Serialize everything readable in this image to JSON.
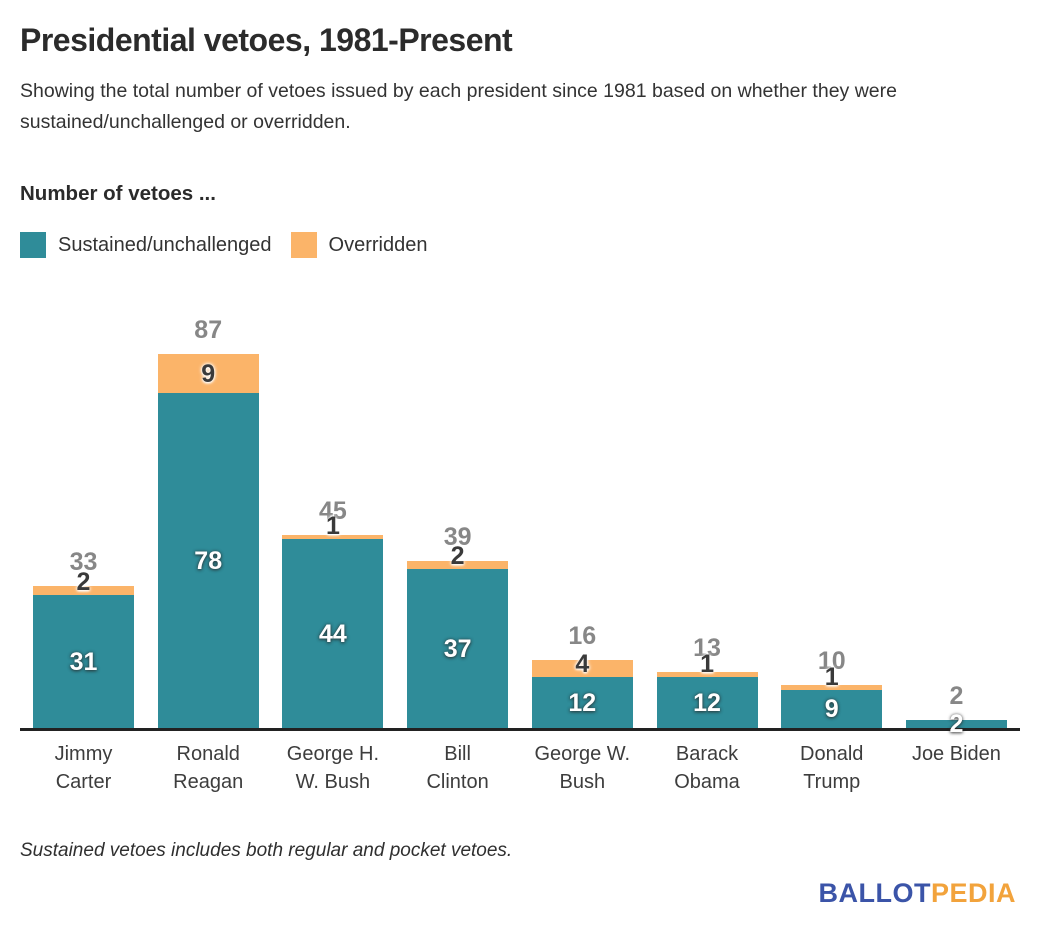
{
  "title": "Presidential vetoes, 1981-Present",
  "subtitle": "Showing the total number of vetoes issued by each president since 1981 based on whether they were sustained/unchallenged or overridden.",
  "legend": {
    "heading": "Number of vetoes ...",
    "items": [
      {
        "label": "Sustained/unchallenged",
        "color": "#2F8C99"
      },
      {
        "label": "Overridden",
        "color": "#FBB469"
      }
    ]
  },
  "chart_data": {
    "type": "bar",
    "stacked": true,
    "title": "Presidential vetoes, 1981-Present",
    "xlabel": "",
    "ylabel": "Number of vetoes",
    "ylim": [
      0,
      87
    ],
    "grid": false,
    "legend_position": "top-left",
    "categories": [
      "Jimmy Carter",
      "Ronald Reagan",
      "George H. W. Bush",
      "Bill Clinton",
      "George W. Bush",
      "Barack Obama",
      "Donald Trump",
      "Joe Biden"
    ],
    "category_lines": [
      [
        "Jimmy",
        "Carter"
      ],
      [
        "Ronald",
        "Reagan"
      ],
      [
        "George H.",
        "W. Bush"
      ],
      [
        "Bill",
        "Clinton"
      ],
      [
        "George W.",
        "Bush"
      ],
      [
        "Barack",
        "Obama"
      ],
      [
        "Donald",
        "Trump"
      ],
      [
        "Joe Biden"
      ]
    ],
    "series": [
      {
        "name": "Sustained/unchallenged",
        "color": "#2F8C99",
        "values": [
          31,
          78,
          44,
          37,
          12,
          12,
          9,
          2
        ]
      },
      {
        "name": "Overridden",
        "color": "#FBB469",
        "values": [
          2,
          9,
          1,
          2,
          4,
          1,
          1,
          0
        ]
      }
    ],
    "totals": [
      33,
      87,
      45,
      39,
      16,
      13,
      10,
      2
    ]
  },
  "note": "Sustained vetoes includes both regular and pocket vetoes.",
  "logo": {
    "part1": "BALLOT",
    "part2": "PEDIA",
    "color1": "#3B54A8",
    "color2": "#F2A33C"
  }
}
